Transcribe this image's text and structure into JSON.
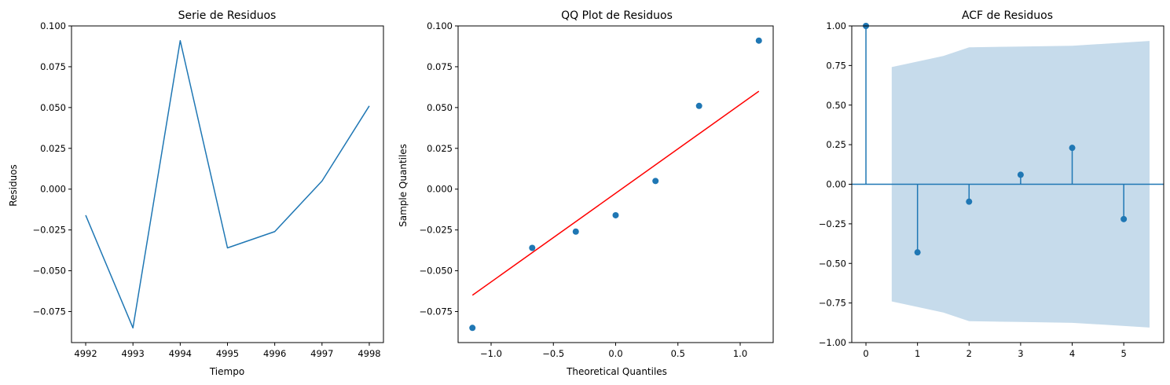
{
  "colors": {
    "series": "#1f77b4",
    "fit_line": "#ff0000",
    "conf_band": "#c6dbeb"
  },
  "chart_data": [
    {
      "type": "line",
      "title": "Serie de Residuos",
      "xlabel": "Tiempo",
      "ylabel": "Residuos",
      "x": [
        4992,
        4993,
        4994,
        4995,
        4996,
        4997,
        4998
      ],
      "y": [
        -0.016,
        -0.085,
        0.091,
        -0.036,
        -0.026,
        0.005,
        0.051
      ],
      "xlim": [
        4991.7,
        4998.3
      ],
      "ylim": [
        -0.094,
        0.1
      ],
      "xticks": [
        4992,
        4993,
        4994,
        4995,
        4996,
        4997,
        4998
      ],
      "xtick_labels": [
        "4992",
        "4993",
        "4994",
        "4995",
        "4996",
        "4997",
        "4998"
      ],
      "yticks": [
        -0.075,
        -0.05,
        -0.025,
        0.0,
        0.025,
        0.05,
        0.075,
        0.1
      ],
      "ytick_labels": [
        "−0.075",
        "−0.050",
        "−0.025",
        "0.000",
        "0.025",
        "0.050",
        "0.075",
        "0.100"
      ],
      "grid": false
    },
    {
      "type": "scatter",
      "title": "QQ Plot de Residuos",
      "xlabel": "Theoretical Quantiles",
      "ylabel": "Sample Quantiles",
      "x": [
        -1.15,
        -0.67,
        -0.32,
        0.0,
        0.32,
        0.67,
        1.15
      ],
      "y": [
        -0.085,
        -0.036,
        -0.026,
        -0.016,
        0.005,
        0.051,
        0.091
      ],
      "fit_line": {
        "x": [
          -1.15,
          1.15
        ],
        "y": [
          -0.065,
          0.06
        ]
      },
      "xlim": [
        -1.265,
        1.265
      ],
      "ylim": [
        -0.094,
        0.1
      ],
      "xticks": [
        -1.0,
        -0.5,
        0.0,
        0.5,
        1.0
      ],
      "xtick_labels": [
        "−1.0",
        "−0.5",
        "0.0",
        "0.5",
        "1.0"
      ],
      "yticks": [
        -0.075,
        -0.05,
        -0.025,
        0.0,
        0.025,
        0.05,
        0.075,
        0.1
      ],
      "ytick_labels": [
        "−0.075",
        "−0.050",
        "−0.025",
        "0.000",
        "0.025",
        "0.050",
        "0.075",
        "0.100"
      ],
      "grid": false
    },
    {
      "type": "bar",
      "title": "ACF de Residuos",
      "xlabel": "",
      "ylabel": "",
      "lags": [
        0,
        1,
        2,
        3,
        4,
        5
      ],
      "values": [
        1.0,
        -0.43,
        -0.11,
        0.06,
        0.23,
        -0.22
      ],
      "conf_band": {
        "x": [
          0.5,
          1.5,
          2.0,
          3.0,
          4.0,
          5.5
        ],
        "upper": [
          0.74,
          0.81,
          0.865,
          0.87,
          0.875,
          0.905
        ]
      },
      "xlim": [
        -0.275,
        5.775
      ],
      "ylim": [
        -1.0,
        1.0
      ],
      "xticks": [
        0,
        1,
        2,
        3,
        4,
        5
      ],
      "xtick_labels": [
        "0",
        "1",
        "2",
        "3",
        "4",
        "5"
      ],
      "yticks": [
        -1.0,
        -0.75,
        -0.5,
        -0.25,
        0.0,
        0.25,
        0.5,
        0.75,
        1.0
      ],
      "ytick_labels": [
        "−1.00",
        "−0.75",
        "−0.50",
        "−0.25",
        "0.00",
        "0.25",
        "0.50",
        "0.75",
        "1.00"
      ],
      "grid": false
    }
  ]
}
